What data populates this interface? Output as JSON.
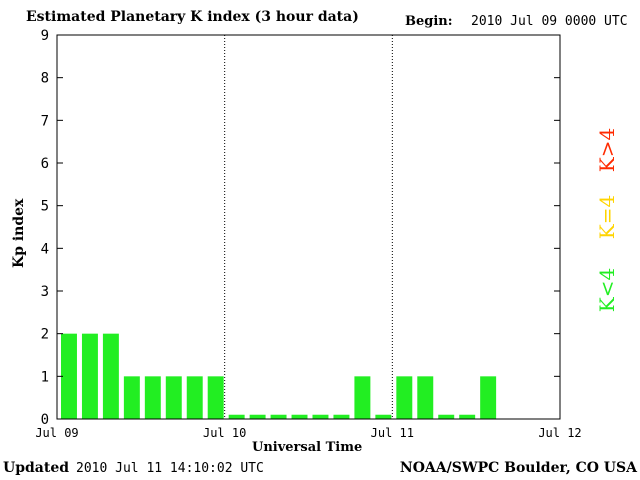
{
  "header": {
    "title": "Estimated Planetary K index (3 hour data)",
    "begin_label": "Begin:",
    "begin_value": "2010 Jul 09 0000 UTC"
  },
  "footer": {
    "updated_label": "Updated",
    "updated_value": "2010 Jul 11 14:10:02 UTC",
    "source": "NOAA/SWPC Boulder, CO USA"
  },
  "legend": {
    "high": {
      "label": "K>4",
      "color": "#ff2a00"
    },
    "equal": {
      "label": "K=4",
      "color": "#ffd400"
    },
    "low": {
      "label": "K<4",
      "color": "#22ee22"
    }
  },
  "chart_data": {
    "type": "bar",
    "title": "Estimated Planetary K index (3 hour data)",
    "xlabel": "Universal Time",
    "ylabel": "Kp index",
    "ylim": [
      0,
      9
    ],
    "yticks": [
      0,
      1,
      2,
      3,
      4,
      5,
      6,
      7,
      8,
      9
    ],
    "x_tick_labels": [
      "Jul 09",
      "Jul 10",
      "Jul 11",
      "Jul 12"
    ],
    "day_separators": [
      "Jul 10",
      "Jul 11"
    ],
    "bars_per_day": 8,
    "total_slots": 24,
    "bar_color": "#22ee22",
    "values": [
      2,
      2,
      2,
      1,
      1,
      1,
      1,
      1,
      0.1,
      0.1,
      0.1,
      0.1,
      0.1,
      0.1,
      1,
      0.1,
      1,
      1,
      0.1,
      0.1,
      1
    ]
  }
}
